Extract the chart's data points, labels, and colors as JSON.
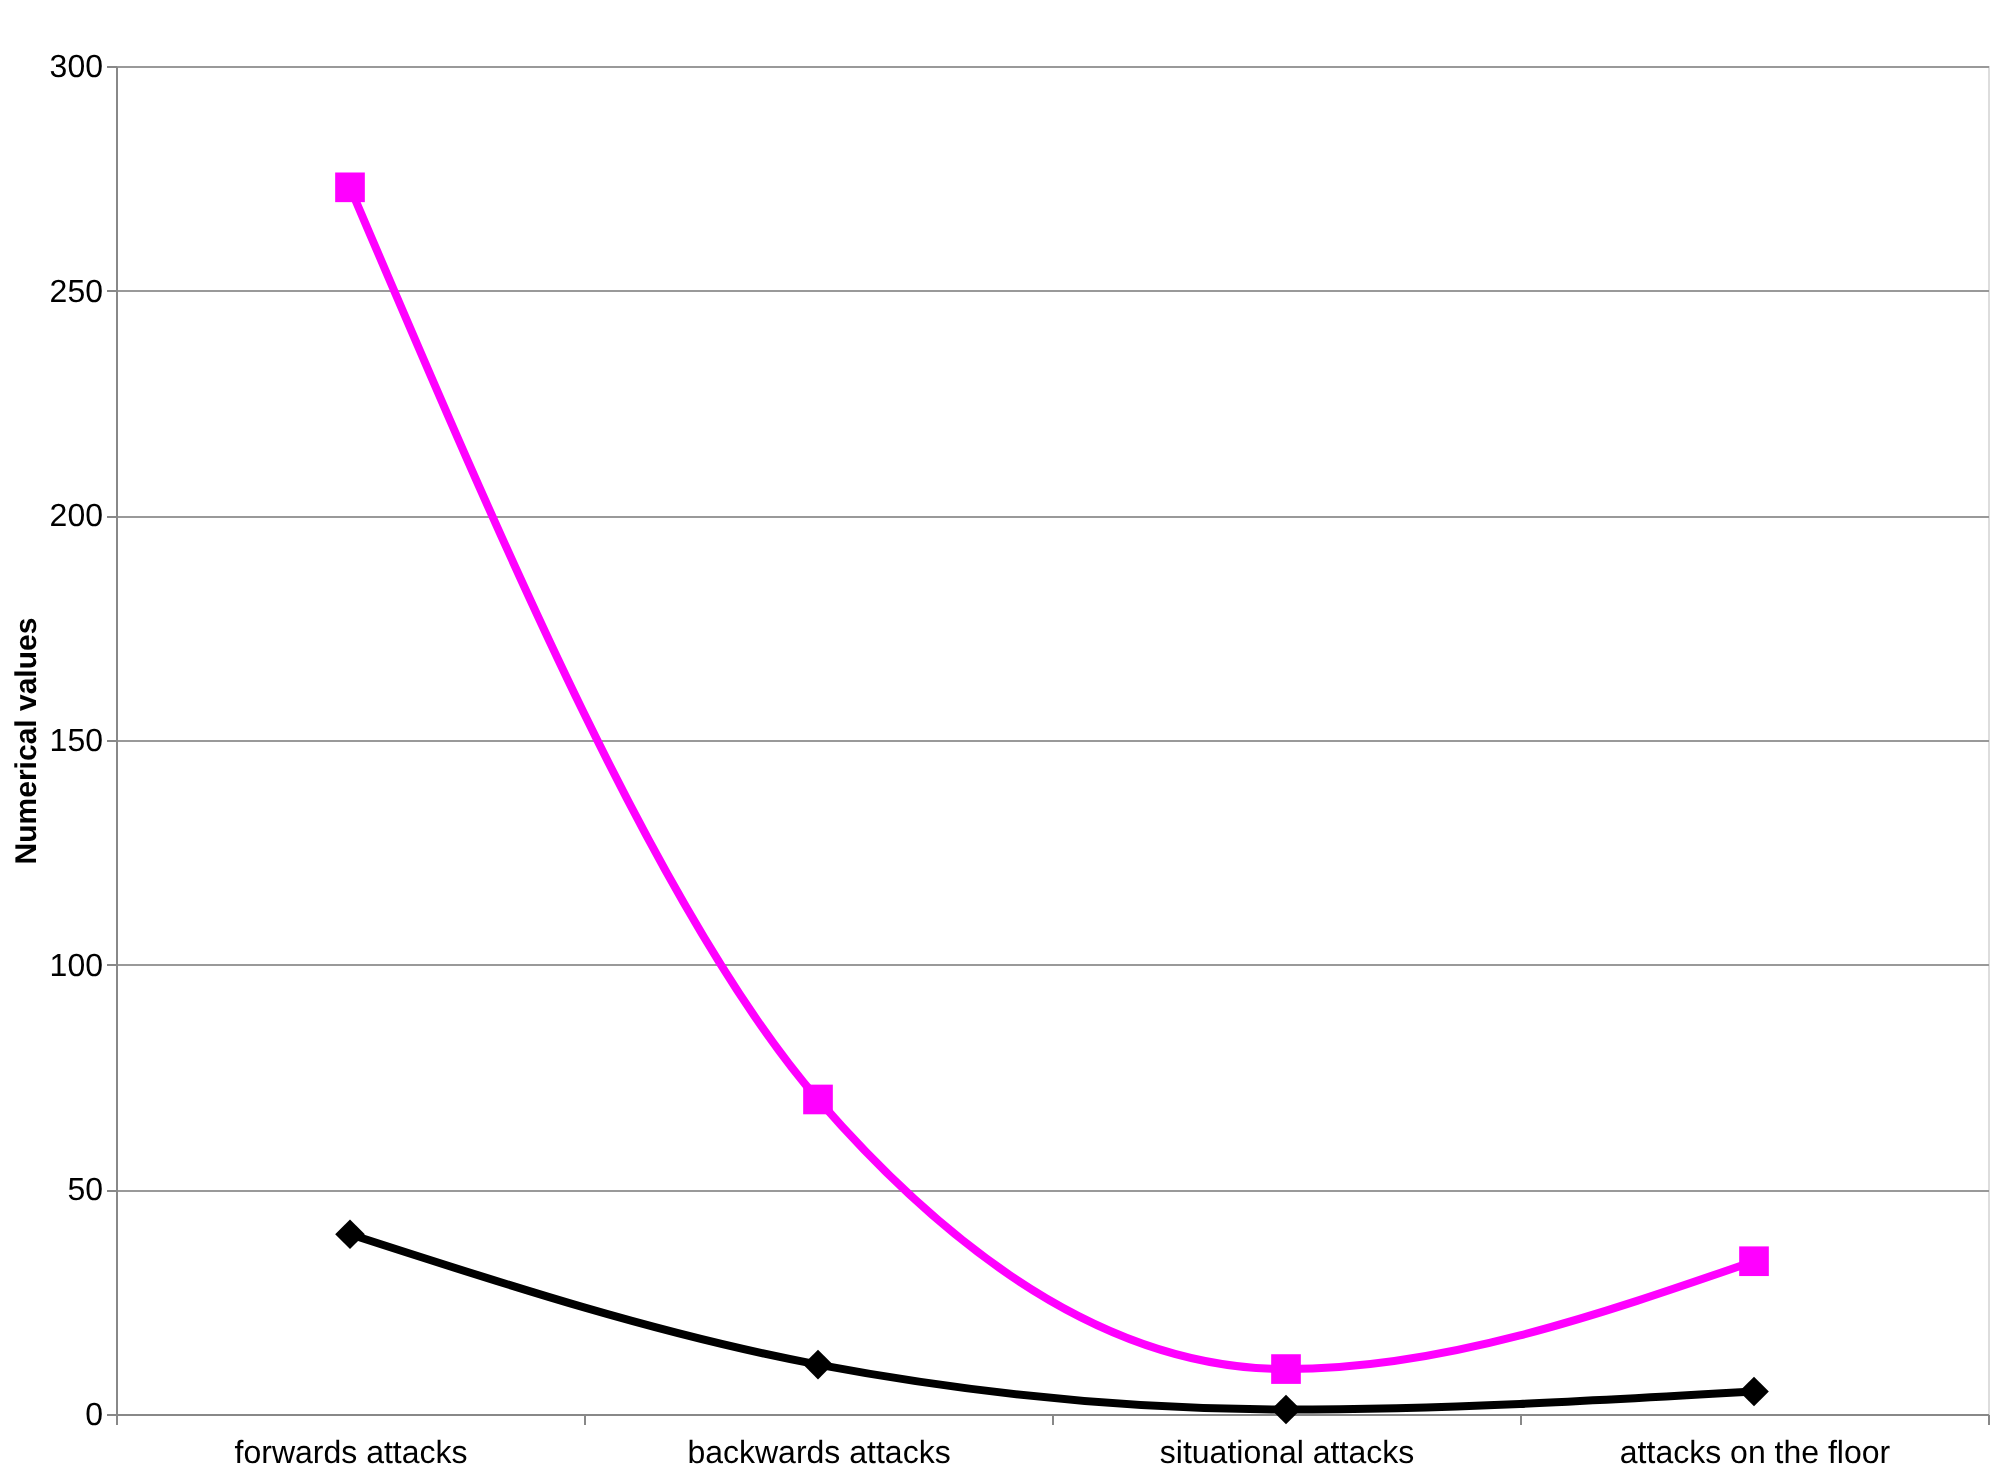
{
  "chart_data": {
    "type": "line",
    "ylabel": "Numerical values",
    "categories": [
      "forwards attacks",
      "backwards attacks",
      "situational attacks",
      "attacks on the floor"
    ],
    "series": [
      {
        "color": "#ff00ff",
        "marker": "square",
        "values": [
          273,
          70,
          10,
          34
        ]
      },
      {
        "color": "#000000",
        "marker": "diamond",
        "values": [
          40,
          11,
          1,
          5
        ]
      }
    ],
    "ylim": [
      0,
      300
    ],
    "yticks": [
      0,
      50,
      100,
      150,
      200,
      250,
      300
    ],
    "grid": "y"
  }
}
